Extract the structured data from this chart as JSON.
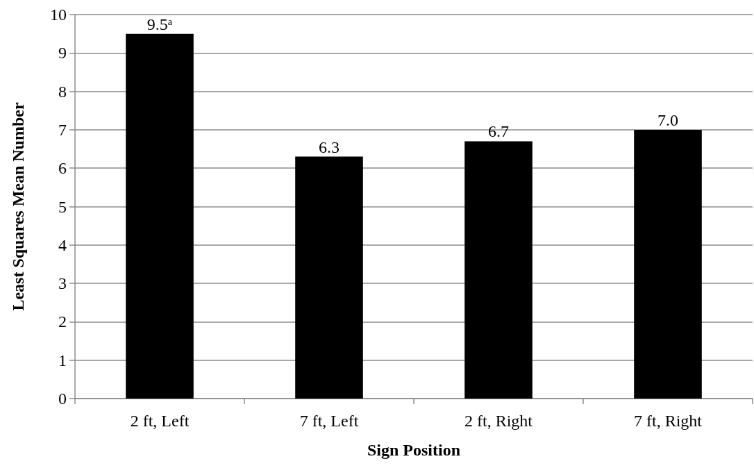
{
  "chart_data": {
    "type": "bar",
    "xlabel": "Sign Position",
    "ylabel": "Least Squares Mean Number",
    "categories": [
      "2 ft, Left",
      "7 ft, Left",
      "2 ft, Right",
      "7 ft, Right"
    ],
    "values": [
      9.5,
      6.3,
      6.7,
      7.0
    ],
    "color": "#000000",
    "value_labels": [
      "9.5ᵃ",
      "6.3",
      "6.7",
      "7.0"
    ],
    "ylim": [
      0,
      10
    ],
    "yticks": [
      0,
      1,
      2,
      3,
      4,
      5,
      6,
      7,
      8,
      9,
      10
    ],
    "grid": "y"
  }
}
